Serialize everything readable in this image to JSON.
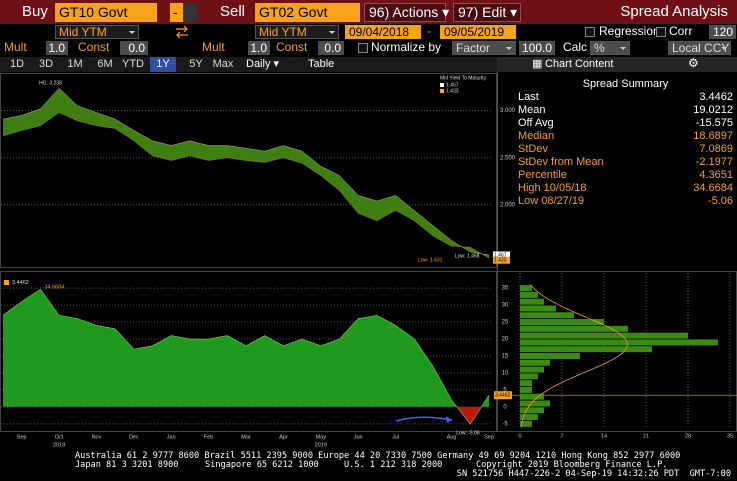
{
  "toolbar": {
    "buy_label": "Buy",
    "buy_ticker": "GT10 Govt",
    "buy_menu": "-",
    "sell_label": "Sell",
    "sell_ticker": "GT02 Govt",
    "actions": "96) Actions ▾",
    "edit": "97) Edit ▾",
    "title": "Spread Analysis"
  },
  "settings": {
    "buy_field": "Mid YTM",
    "sell_field": "Mid YTM",
    "start_date": "09/04/2018",
    "date_sep": "-",
    "end_date": "09/05/2019",
    "regression": "Regression",
    "corr_label": "Corr",
    "corr_value": "120",
    "buy_mult_label": "Mult",
    "buy_mult": "1.0",
    "buy_const_label": "Const",
    "buy_const": "0.0",
    "sell_mult_label": "Mult",
    "sell_mult": "1.0",
    "sell_const_label": "Const",
    "sell_const": "0.0",
    "normalize": "Normalize by",
    "normalize_method": "Factor",
    "normalize_value": "100.0",
    "calc_label": "Calc",
    "calc": "%",
    "currency": "Local CCY"
  },
  "tabs": {
    "periods": [
      "1D",
      "3D",
      "1M",
      "6M",
      "YTD",
      "1Y",
      "5Y",
      "Max"
    ],
    "selected": "1Y",
    "frequency": "Daily ▾",
    "table": "Table",
    "chart_content": "Chart Content"
  },
  "summary": {
    "title": "Spread Summary",
    "rows": [
      [
        "Last",
        "3.4462"
      ],
      [
        "Mean",
        "19.0212"
      ],
      [
        "Off Avg",
        "-15.575"
      ],
      [
        "Median",
        "18.6897"
      ],
      [
        "StDev",
        "7.0869"
      ],
      [
        "StDev from Mean",
        "-2.1977"
      ],
      [
        "Percentile",
        "4.3651"
      ],
      [
        "High 10/05/18",
        "34.6684"
      ],
      [
        "Low 08/27/19",
        "-5.06"
      ]
    ]
  },
  "chart_data": [
    {
      "type": "band",
      "legend_title": "Mid Yield To Maturity",
      "band_color": "#3f7f12",
      "series": [
        {
          "color": "#ffffff",
          "values": [
            2.91,
            2.95,
            3.02,
            3.238,
            3.05,
            2.98,
            2.91,
            2.79,
            2.68,
            2.63,
            2.68,
            2.63,
            2.63,
            2.6,
            2.57,
            2.63,
            2.57,
            2.41,
            2.31,
            2.1,
            2.04,
            2.1,
            1.94,
            1.78,
            1.62,
            1.5,
            1.467
          ]
        },
        {
          "color": "#f6a21a",
          "values": [
            2.73,
            2.79,
            2.84,
            2.98,
            2.89,
            2.84,
            2.81,
            2.68,
            2.52,
            2.47,
            2.52,
            2.47,
            2.5,
            2.47,
            2.45,
            2.5,
            2.44,
            2.31,
            2.15,
            1.91,
            1.83,
            1.94,
            1.83,
            1.67,
            1.56,
            1.55,
            1.433
          ]
        }
      ],
      "annotations": {
        "high": "HG: 3.238",
        "low_1": "Low: 1.458",
        "low_2": "Low: 1.431"
      },
      "ylim": [
        1.35,
        3.4
      ],
      "yticks": [
        {
          "value": 2,
          "label": "2.000"
        },
        {
          "value": 2.5,
          "label": "2.500"
        },
        {
          "value": 3,
          "label": "3.000"
        }
      ],
      "grid": true
    },
    {
      "type": "area",
      "color": "#1f9a1f",
      "negative_color": "#c0140f",
      "legend_color": "#f6a21a",
      "categories": [
        null,
        "Sep",
        null,
        "Oct",
        null,
        "Nov",
        null,
        "Dec",
        null,
        "Jan",
        null,
        "Feb",
        null,
        "Mar",
        null,
        "Apr",
        null,
        "May",
        null,
        "Jun",
        null,
        "Jul",
        null,
        null,
        "Aug",
        null,
        "Sep"
      ],
      "years": [
        null,
        null,
        null,
        "2018",
        null,
        null,
        null,
        null,
        null,
        null,
        null,
        null,
        null,
        null,
        null,
        null,
        null,
        "2019",
        null,
        null,
        null,
        null,
        null,
        null,
        null,
        null,
        null
      ],
      "values": [
        27,
        31,
        34.6684,
        27,
        26,
        24,
        23,
        17,
        18,
        21,
        20,
        20,
        21,
        18,
        21,
        18,
        20,
        18,
        20,
        26,
        27,
        24,
        20,
        12,
        2,
        -5.06,
        3.4462
      ],
      "annotations": {
        "low": "Low: -5.06"
      },
      "ylim": [
        -7.4,
        36.8
      ],
      "yticks": [
        -5,
        0,
        5,
        10,
        15,
        20,
        25,
        30,
        35
      ],
      "grid": true
    },
    {
      "type": "histogram",
      "orientation": "horizontal",
      "color": "#3a8a14",
      "curve_color": "#f6a21a",
      "bins": [
        -6,
        -4,
        -2,
        0,
        2,
        4,
        6,
        8,
        10,
        12,
        14,
        16,
        18,
        20,
        22,
        24,
        26,
        28,
        30,
        32,
        34,
        36
      ],
      "counts": [
        2,
        3,
        4,
        5,
        4,
        2,
        2,
        3,
        4,
        5,
        10,
        22,
        33,
        28,
        18,
        14,
        9,
        6,
        4,
        3,
        2
      ],
      "xlim": [
        -1,
        36
      ],
      "xticks": [
        0,
        7,
        14,
        21,
        28,
        35
      ],
      "grid": true
    }
  ],
  "footer": {
    "line1": "Australia 61 2 9777 8600 Brazil 5511 2395 9000 Europe 44 20 7330 7500 Germany 49 69 9204 1210 Hong Kong 852 2977 6000",
    "line2": [
      "Japan 81 3 3201 8900",
      "Singapore 65 6212 1000",
      "U.S. 1 212 318 2000",
      "Copyright 2019 Bloomberg Finance L.P."
    ],
    "line3": "SN 521756 H447-226-2 04-Sep-19 14:32:26 PDT  GMT-7:00"
  }
}
